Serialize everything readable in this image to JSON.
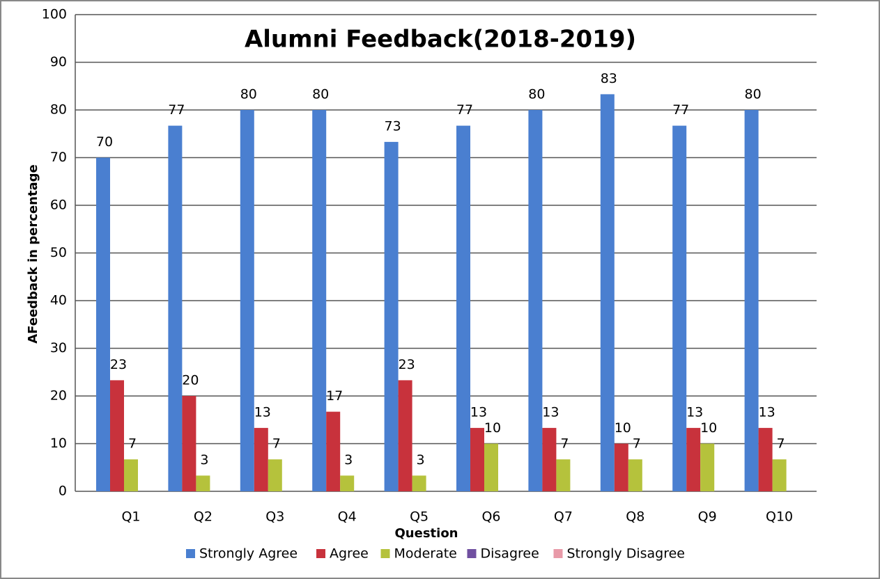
{
  "chart_data": {
    "type": "bar",
    "title": "Alumni Feedback(2018-2019)",
    "y_label": "AFeedback in percentage",
    "x_label": "Question",
    "categories": [
      "Q1",
      "Q2",
      "Q3",
      "Q4",
      "Q5",
      "Q6",
      "Q7",
      "Q8",
      "Q9",
      "Q10"
    ],
    "series": [
      {
        "name": "Strongly Agree",
        "color": "#4a7fd0",
        "values": [
          70,
          76.7,
          80,
          80,
          73.3,
          76.7,
          80,
          83.3,
          76.7,
          80
        ],
        "value_labels": [
          "70",
          "77",
          "80",
          "80",
          "73",
          "77",
          "80",
          "83",
          "77",
          "80"
        ]
      },
      {
        "name": "Agree",
        "color": "#c8323c",
        "values": [
          23.3,
          20,
          13.3,
          16.7,
          23.3,
          13.3,
          13.3,
          10,
          13.3,
          13.3
        ],
        "value_labels": [
          "23",
          "20",
          "13",
          "17",
          "23",
          "13",
          "13",
          "10",
          "13",
          "13"
        ]
      },
      {
        "name": "Moderate",
        "color": "#b5c23c",
        "values": [
          6.7,
          3.3,
          6.7,
          3.3,
          3.3,
          10,
          6.7,
          6.7,
          10,
          6.7
        ],
        "value_labels": [
          "7",
          "3",
          "7",
          "3",
          "3",
          "10",
          "7",
          "7",
          "10",
          "7"
        ]
      },
      {
        "name": "Disagree",
        "color": "#7050a0",
        "values": [
          0,
          0,
          0,
          0,
          0,
          0,
          0,
          0,
          0,
          0
        ]
      },
      {
        "name": "Strongly Disagree",
        "color": "#e89aa8",
        "values": [
          0,
          0,
          0,
          0,
          0,
          0,
          0,
          0,
          0,
          0
        ]
      }
    ],
    "ylim": [
      0,
      100
    ],
    "yticks": [
      0,
      10,
      20,
      30,
      40,
      50,
      60,
      70,
      80,
      90,
      100
    ],
    "grid": true,
    "legend": "bottom"
  }
}
